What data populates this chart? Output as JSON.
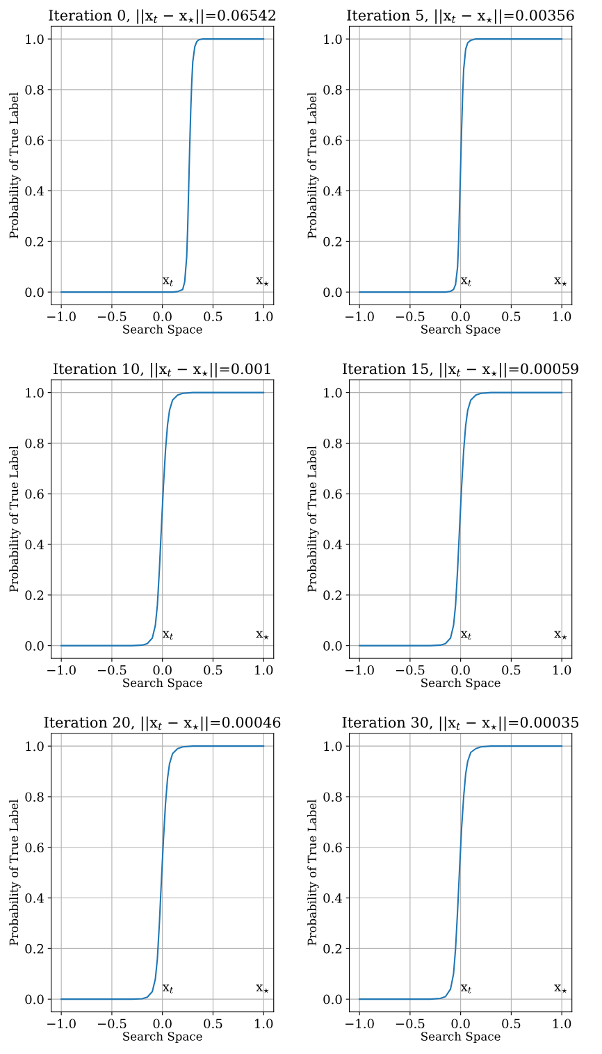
{
  "chart_data": [
    {
      "type": "line",
      "title": "Iteration 0, ||x$_{t}$ − x$_{⋆}$||=0.06542",
      "xlabel": "Search Space",
      "ylabel": "Probability of True Label",
      "x": [
        -1,
        0.1,
        0.15,
        0.2,
        0.22,
        0.24,
        0.25,
        0.26,
        0.27,
        0.28,
        0.29,
        0.3,
        0.32,
        0.34,
        0.36,
        0.4,
        1.0
      ],
      "series": [
        {
          "color": "#1f77b4",
          "values": [
            0,
            0,
            0.002,
            0.01,
            0.04,
            0.14,
            0.26,
            0.42,
            0.58,
            0.72,
            0.83,
            0.91,
            0.97,
            0.99,
            0.997,
            1.0,
            1.0
          ]
        }
      ],
      "annotations": [
        "x$_{t}$",
        "x$_{⋆}$"
      ],
      "xlim": [
        -1.1,
        1.1
      ],
      "ylim": [
        -0.05,
        1.05
      ],
      "xticks": [
        {
          "value": -1,
          "label": "−1.0"
        },
        {
          "value": -0.5,
          "label": "−0.5"
        },
        {
          "value": 0,
          "label": "0.0"
        },
        {
          "value": 0.5,
          "label": "0.5"
        },
        {
          "value": 1,
          "label": "1.0"
        }
      ],
      "yticks": [
        {
          "value": 0,
          "label": "0.0"
        },
        {
          "value": 0.2,
          "label": "0.2"
        },
        {
          "value": 0.4,
          "label": "0.4"
        },
        {
          "value": 0.6,
          "label": "0.6"
        },
        {
          "value": 0.8,
          "label": "0.8"
        },
        {
          "value": 1,
          "label": "1.0"
        }
      ],
      "grid": true
    },
    {
      "type": "line",
      "title": "Iteration 5, ||x$_{t}$ − x$_{⋆}$||=0.00356",
      "xlabel": "Search Space",
      "ylabel": "Probability of True Label",
      "x": [
        -1,
        -0.15,
        -0.1,
        -0.07,
        -0.05,
        -0.03,
        -0.02,
        -0.01,
        0,
        0.01,
        0.02,
        0.03,
        0.05,
        0.07,
        0.1,
        0.15,
        0.2,
        1
      ],
      "series": [
        {
          "color": "#1f77b4",
          "values": [
            0,
            0,
            0.003,
            0.01,
            0.03,
            0.1,
            0.2,
            0.35,
            0.5,
            0.65,
            0.78,
            0.88,
            0.96,
            0.985,
            0.995,
            1,
            1,
            1
          ]
        }
      ],
      "annotations": [
        "x$_{t}$",
        "x$_{⋆}$"
      ],
      "xlim": [
        -1.1,
        1.1
      ],
      "ylim": [
        -0.05,
        1.05
      ],
      "xticks": [
        {
          "value": -1,
          "label": "−1.0"
        },
        {
          "value": -0.5,
          "label": "−0.5"
        },
        {
          "value": 0,
          "label": "0.0"
        },
        {
          "value": 0.5,
          "label": "0.5"
        },
        {
          "value": 1,
          "label": "1.0"
        }
      ],
      "yticks": [
        {
          "value": 0,
          "label": "0.0"
        },
        {
          "value": 0.2,
          "label": "0.2"
        },
        {
          "value": 0.4,
          "label": "0.4"
        },
        {
          "value": 0.6,
          "label": "0.6"
        },
        {
          "value": 0.8,
          "label": "0.8"
        },
        {
          "value": 1,
          "label": "1.0"
        }
      ],
      "grid": true
    },
    {
      "type": "line",
      "title": "Iteration 10, ||x$_{t}$ − x$_{⋆}$||=0.001",
      "xlabel": "Search Space",
      "ylabel": "Probability of True Label",
      "x": [
        -1,
        -0.3,
        -0.2,
        -0.15,
        -0.1,
        -0.07,
        -0.05,
        -0.03,
        -0.01,
        0.01,
        0.03,
        0.05,
        0.07,
        0.1,
        0.15,
        0.2,
        0.3,
        1
      ],
      "series": [
        {
          "color": "#1f77b4",
          "values": [
            0,
            0,
            0.002,
            0.008,
            0.03,
            0.08,
            0.16,
            0.3,
            0.47,
            0.63,
            0.77,
            0.87,
            0.93,
            0.97,
            0.99,
            0.997,
            1,
            1
          ]
        }
      ],
      "annotations": [
        "x$_{t}$",
        "x$_{⋆}$"
      ],
      "xlim": [
        -1.1,
        1.1
      ],
      "ylim": [
        -0.05,
        1.05
      ],
      "xticks": [
        {
          "value": -1,
          "label": "−1.0"
        },
        {
          "value": -0.5,
          "label": "−0.5"
        },
        {
          "value": 0,
          "label": "0.0"
        },
        {
          "value": 0.5,
          "label": "0.5"
        },
        {
          "value": 1,
          "label": "1.0"
        }
      ],
      "yticks": [
        {
          "value": 0,
          "label": "0.0"
        },
        {
          "value": 0.2,
          "label": "0.2"
        },
        {
          "value": 0.4,
          "label": "0.4"
        },
        {
          "value": 0.6,
          "label": "0.6"
        },
        {
          "value": 0.8,
          "label": "0.8"
        },
        {
          "value": 1,
          "label": "1.0"
        }
      ],
      "grid": true
    },
    {
      "type": "line",
      "title": "Iteration 15, ||x$_{t}$ − x$_{⋆}$||=0.00059",
      "xlabel": "Search Space",
      "ylabel": "Probability of True Label",
      "x": [
        -1,
        -0.3,
        -0.2,
        -0.15,
        -0.1,
        -0.07,
        -0.05,
        -0.03,
        -0.01,
        0.01,
        0.03,
        0.05,
        0.07,
        0.1,
        0.15,
        0.2,
        0.3,
        1
      ],
      "series": [
        {
          "color": "#1f77b4",
          "values": [
            0,
            0,
            0.002,
            0.008,
            0.03,
            0.08,
            0.16,
            0.3,
            0.47,
            0.63,
            0.77,
            0.87,
            0.93,
            0.97,
            0.99,
            0.997,
            1,
            1
          ]
        }
      ],
      "annotations": [
        "x$_{t}$",
        "x$_{⋆}$"
      ],
      "xlim": [
        -1.1,
        1.1
      ],
      "ylim": [
        -0.05,
        1.05
      ],
      "xticks": [
        {
          "value": -1,
          "label": "−1.0"
        },
        {
          "value": -0.5,
          "label": "−0.5"
        },
        {
          "value": 0,
          "label": "0.0"
        },
        {
          "value": 0.5,
          "label": "0.5"
        },
        {
          "value": 1,
          "label": "1.0"
        }
      ],
      "yticks": [
        {
          "value": 0,
          "label": "0.0"
        },
        {
          "value": 0.2,
          "label": "0.2"
        },
        {
          "value": 0.4,
          "label": "0.4"
        },
        {
          "value": 0.6,
          "label": "0.6"
        },
        {
          "value": 0.8,
          "label": "0.8"
        },
        {
          "value": 1,
          "label": "1.0"
        }
      ],
      "grid": true
    },
    {
      "type": "line",
      "title": "Iteration 20, ||x$_{t}$ − x$_{⋆}$||=0.00046",
      "xlabel": "Search Space",
      "ylabel": "Probability of True Label",
      "x": [
        -1,
        -0.3,
        -0.2,
        -0.15,
        -0.1,
        -0.07,
        -0.05,
        -0.03,
        -0.01,
        0.01,
        0.03,
        0.05,
        0.07,
        0.1,
        0.15,
        0.2,
        0.3,
        1
      ],
      "series": [
        {
          "color": "#1f77b4",
          "values": [
            0,
            0,
            0.002,
            0.008,
            0.03,
            0.08,
            0.16,
            0.3,
            0.47,
            0.63,
            0.77,
            0.87,
            0.93,
            0.97,
            0.99,
            0.997,
            1,
            1
          ]
        }
      ],
      "annotations": [
        "x$_{t}$",
        "x$_{⋆}$"
      ],
      "xlim": [
        -1.1,
        1.1
      ],
      "ylim": [
        -0.05,
        1.05
      ],
      "xticks": [
        {
          "value": -1,
          "label": "−1.0"
        },
        {
          "value": -0.5,
          "label": "−0.5"
        },
        {
          "value": 0,
          "label": "0.0"
        },
        {
          "value": 0.5,
          "label": "0.5"
        },
        {
          "value": 1,
          "label": "1.0"
        }
      ],
      "yticks": [
        {
          "value": 0,
          "label": "0.0"
        },
        {
          "value": 0.2,
          "label": "0.2"
        },
        {
          "value": 0.4,
          "label": "0.4"
        },
        {
          "value": 0.6,
          "label": "0.6"
        },
        {
          "value": 0.8,
          "label": "0.8"
        },
        {
          "value": 1,
          "label": "1.0"
        }
      ],
      "grid": true
    },
    {
      "type": "line",
      "title": "Iteration 30, ||x$_{t}$ − x$_{⋆}$||=0.00035",
      "xlabel": "Search Space",
      "ylabel": "Probability of True Label",
      "x": [
        -1,
        -0.3,
        -0.2,
        -0.15,
        -0.1,
        -0.07,
        -0.05,
        -0.03,
        -0.01,
        0.01,
        0.03,
        0.05,
        0.07,
        0.1,
        0.15,
        0.2,
        0.3,
        1
      ],
      "series": [
        {
          "color": "#1f77b4",
          "values": [
            0,
            0,
            0.003,
            0.01,
            0.04,
            0.1,
            0.2,
            0.35,
            0.52,
            0.68,
            0.8,
            0.89,
            0.94,
            0.975,
            0.99,
            0.997,
            1,
            1
          ]
        }
      ],
      "annotations": [
        "x$_{t}$",
        "x$_{⋆}$"
      ],
      "xlim": [
        -1.1,
        1.1
      ],
      "ylim": [
        -0.05,
        1.05
      ],
      "xticks": [
        {
          "value": -1,
          "label": "−1.0"
        },
        {
          "value": -0.5,
          "label": "−0.5"
        },
        {
          "value": 0,
          "label": "0.0"
        },
        {
          "value": 0.5,
          "label": "0.5"
        },
        {
          "value": 1,
          "label": "1.0"
        }
      ],
      "yticks": [
        {
          "value": 0,
          "label": "0.0"
        },
        {
          "value": 0.2,
          "label": "0.2"
        },
        {
          "value": 0.4,
          "label": "0.4"
        },
        {
          "value": 0.6,
          "label": "0.6"
        },
        {
          "value": 0.8,
          "label": "0.8"
        },
        {
          "value": 1,
          "label": "1.0"
        }
      ],
      "grid": true
    }
  ]
}
